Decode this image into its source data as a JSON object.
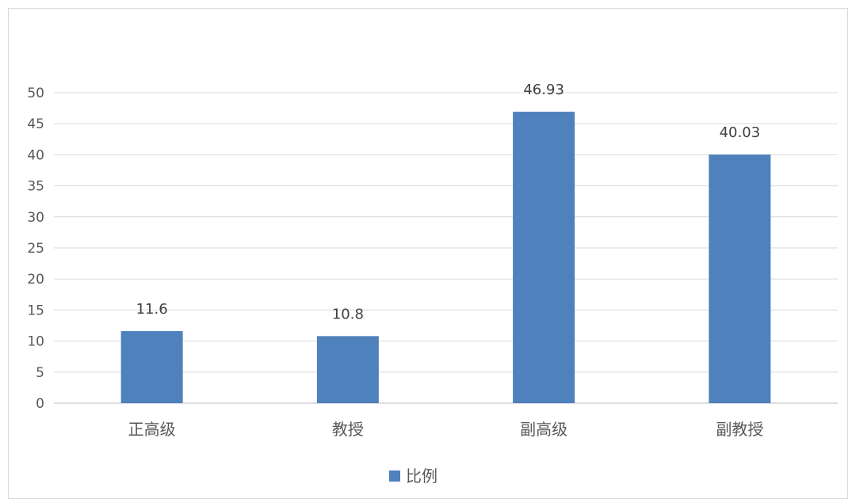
{
  "chart_data": {
    "type": "bar",
    "categories": [
      "正高级",
      "教授",
      "副高级",
      "副教授"
    ],
    "series": [
      {
        "name": "比例",
        "values": [
          11.6,
          10.8,
          46.93,
          40.03
        ],
        "labels": [
          "11.6",
          "10.8",
          "46.93",
          "40.03"
        ],
        "color": "#4f81bd"
      }
    ],
    "title": "",
    "xlabel": "",
    "ylabel": "",
    "ylim": [
      0,
      50
    ],
    "yticks": [
      0,
      5,
      10,
      15,
      20,
      25,
      30,
      35,
      40,
      45,
      50
    ],
    "grid": true,
    "legend_position": "bottom"
  },
  "colors": {
    "grid": "#d9d9d9",
    "axis": "#bfbfbf",
    "bar": "#4f81bd"
  }
}
